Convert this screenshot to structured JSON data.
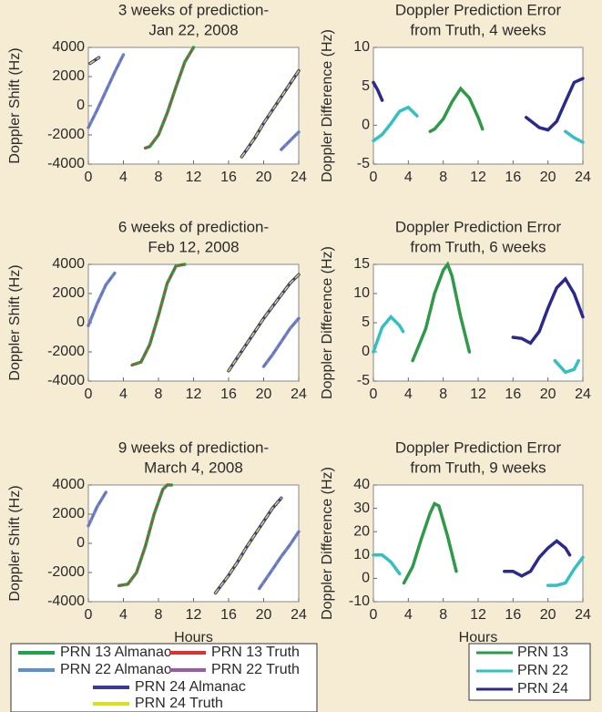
{
  "chart_data": [
    {
      "type": "line",
      "title": [
        "3 weeks of prediction-",
        "Jan 22, 2008"
      ],
      "y_label": "Doppler Shift (Hz)",
      "xlim": [
        0,
        24
      ],
      "xticks": [
        0,
        4,
        8,
        12,
        16,
        20,
        24
      ],
      "ylim": [
        -4000,
        4000
      ],
      "yticks": [
        -4000,
        -2000,
        0,
        2000,
        4000
      ],
      "series": [
        {
          "name": "PRN 13 Almanac",
          "color": "#1fa34a",
          "x": [
            6.5,
            7,
            8,
            9,
            10,
            11,
            12
          ],
          "values": [
            -2900,
            -2800,
            -2000,
            -500,
            1300,
            3000,
            4000
          ]
        },
        {
          "name": "PRN 13 Truth",
          "color": "#e03030",
          "x": [
            6.5,
            7,
            8,
            9,
            10,
            11,
            12
          ],
          "values": [
            -2900,
            -2800,
            -2000,
            -500,
            1300,
            3000,
            4000
          ]
        },
        {
          "name": "PRN 22 Almanac",
          "color": "#5b8fd0",
          "x": [
            0,
            1,
            2,
            3,
            4,
            null,
            22,
            23,
            24
          ],
          "values": [
            -1500,
            -300,
            1000,
            2300,
            3500,
            null,
            -3000,
            -2400,
            -1800
          ]
        },
        {
          "name": "PRN 22 Truth",
          "color": "#9a5aa8",
          "x": [
            0,
            1,
            2,
            3,
            4,
            null,
            22,
            23,
            24
          ],
          "values": [
            -1500,
            -300,
            1000,
            2300,
            3500,
            null,
            -3000,
            -2400,
            -1800
          ]
        },
        {
          "name": "PRN 24 Almanac",
          "color": "#3a3a96",
          "x": [
            0.2,
            1.2,
            null,
            17.5,
            19,
            20,
            21,
            22,
            23,
            24
          ],
          "values": [
            2900,
            3300,
            null,
            -3500,
            -2200,
            -1200,
            -300,
            600,
            1500,
            2400
          ]
        },
        {
          "name": "PRN 24 Truth",
          "color": "#dede20",
          "x": [
            0.2,
            1.2,
            null,
            17.5,
            19,
            20,
            21,
            22,
            23,
            24
          ],
          "values": [
            2900,
            3300,
            null,
            -3500,
            -2200,
            -1200,
            -300,
            600,
            1500,
            2400
          ]
        }
      ]
    },
    {
      "type": "line",
      "title": [
        "Doppler Prediction Error",
        "from Truth, 4 weeks"
      ],
      "y_label": "Doppler Difference (Hz)",
      "xlim": [
        0,
        24
      ],
      "xticks": [
        0,
        4,
        8,
        12,
        16,
        20,
        24
      ],
      "ylim": [
        -5,
        10
      ],
      "yticks": [
        -5,
        0,
        5,
        10
      ],
      "series": [
        {
          "name": "PRN 13",
          "color": "#2e9a48",
          "x": [
            6.5,
            7,
            8,
            9,
            10,
            11,
            12,
            12.5
          ],
          "values": [
            -0.8,
            -0.5,
            0.8,
            3,
            4.7,
            3.5,
            1,
            -0.5
          ]
        },
        {
          "name": "PRN 22",
          "color": "#33c0c0",
          "x": [
            0,
            1,
            2,
            3,
            4,
            5,
            null,
            22,
            23,
            24
          ],
          "values": [
            -2,
            -1.2,
            0.2,
            1.8,
            2.3,
            1.2,
            null,
            -0.8,
            -1.6,
            -2.2
          ]
        },
        {
          "name": "PRN 24",
          "color": "#2a2a8c",
          "x": [
            0,
            0.5,
            1,
            null,
            17.5,
            19,
            20,
            21,
            22,
            23,
            24
          ],
          "values": [
            5.5,
            4.5,
            3.2,
            null,
            1,
            -0.3,
            -0.6,
            0.5,
            3,
            5.5,
            6
          ]
        }
      ]
    },
    {
      "type": "line",
      "title": [
        "6 weeks of prediction-",
        "Feb 12, 2008"
      ],
      "y_label": "Doppler Shift (Hz)",
      "xlim": [
        0,
        24
      ],
      "xticks": [
        0,
        4,
        8,
        12,
        16,
        20,
        24
      ],
      "ylim": [
        -4000,
        4000
      ],
      "yticks": [
        -4000,
        -2000,
        0,
        2000,
        4000
      ],
      "series": [
        {
          "name": "PRN 13 Almanac",
          "color": "#1fa34a",
          "x": [
            5,
            6,
            7,
            8,
            9,
            10,
            11
          ],
          "values": [
            -2900,
            -2700,
            -1500,
            500,
            2700,
            3900,
            4000
          ]
        },
        {
          "name": "PRN 13 Truth",
          "color": "#e03030",
          "x": [
            5,
            6,
            7,
            8,
            9,
            10,
            11
          ],
          "values": [
            -2900,
            -2700,
            -1500,
            500,
            2700,
            3900,
            4000
          ]
        },
        {
          "name": "PRN 22 Almanac",
          "color": "#5b8fd0",
          "x": [
            0,
            1,
            2,
            3,
            null,
            20,
            21,
            22,
            23,
            24
          ],
          "values": [
            -200,
            1300,
            2600,
            3400,
            null,
            -3000,
            -2200,
            -1300,
            -400,
            300
          ]
        },
        {
          "name": "PRN 22 Truth",
          "color": "#9a5aa8",
          "x": [
            0,
            1,
            2,
            3,
            null,
            20,
            21,
            22,
            23,
            24
          ],
          "values": [
            -200,
            1300,
            2600,
            3400,
            null,
            -3000,
            -2200,
            -1300,
            -400,
            300
          ]
        },
        {
          "name": "PRN 24 Almanac",
          "color": "#3a3a96",
          "x": [
            16,
            17,
            18,
            19,
            20,
            21,
            22,
            23,
            24
          ],
          "values": [
            -3300,
            -2400,
            -1500,
            -600,
            300,
            1100,
            1900,
            2700,
            3300
          ]
        },
        {
          "name": "PRN 24 Truth",
          "color": "#dede20",
          "x": [
            16,
            17,
            18,
            19,
            20,
            21,
            22,
            23,
            24
          ],
          "values": [
            -3300,
            -2400,
            -1500,
            -600,
            300,
            1100,
            1900,
            2700,
            3300
          ]
        }
      ]
    },
    {
      "type": "line",
      "title": [
        "Doppler Prediction Error",
        "from Truth, 6 weeks"
      ],
      "y_label": "Doppler Difference (Hz)",
      "xlim": [
        0,
        24
      ],
      "xticks": [
        0,
        4,
        8,
        12,
        16,
        20,
        24
      ],
      "ylim": [
        -5,
        15
      ],
      "yticks": [
        -5,
        0,
        5,
        10,
        15
      ],
      "series": [
        {
          "name": "PRN 13",
          "color": "#2e9a48",
          "x": [
            4.5,
            6,
            7,
            8,
            8.5,
            9,
            10,
            11
          ],
          "values": [
            -1.5,
            4,
            10,
            14,
            15,
            13,
            6,
            0
          ]
        },
        {
          "name": "PRN 22",
          "color": "#33c0c0",
          "x": [
            0,
            1,
            2,
            3,
            3.4,
            null,
            20.8,
            22,
            23,
            23.5
          ],
          "values": [
            0,
            4.2,
            6,
            4.5,
            3.5,
            null,
            -1.5,
            -3.5,
            -3,
            -1.5
          ]
        },
        {
          "name": "PRN 24",
          "color": "#2a2a8c",
          "x": [
            16,
            17,
            18,
            19,
            20,
            21,
            22,
            23,
            24
          ],
          "values": [
            2.5,
            2.3,
            1.5,
            3.5,
            7.5,
            11,
            12.5,
            10,
            6
          ]
        }
      ]
    },
    {
      "type": "line",
      "title": [
        "9 weeks of prediction-",
        "March 4, 2008"
      ],
      "y_label": "Doppler Shift (Hz)",
      "x_label": "Hours",
      "xlim": [
        0,
        24
      ],
      "xticks": [
        0,
        4,
        8,
        12,
        16,
        20,
        24
      ],
      "ylim": [
        -4000,
        4000
      ],
      "yticks": [
        -4000,
        -2000,
        0,
        2000,
        4000
      ],
      "series": [
        {
          "name": "PRN 13 Almanac",
          "color": "#1fa34a",
          "x": [
            3.5,
            4.5,
            5.5,
            6.5,
            7.5,
            8.5,
            9,
            9.5
          ],
          "values": [
            -2900,
            -2800,
            -2000,
            -200,
            2000,
            3700,
            4000,
            4000
          ]
        },
        {
          "name": "PRN 13 Truth",
          "color": "#e03030",
          "x": [
            3.5,
            4.5,
            5.5,
            6.5,
            7.5,
            8.5,
            9,
            9.5
          ],
          "values": [
            -2900,
            -2800,
            -2000,
            -200,
            2000,
            3700,
            4000,
            4000
          ]
        },
        {
          "name": "PRN 22 Almanac",
          "color": "#5b8fd0",
          "x": [
            0,
            1,
            2,
            null,
            19.5,
            21,
            22,
            23,
            24
          ],
          "values": [
            1200,
            2500,
            3500,
            null,
            -3100,
            -1800,
            -900,
            -100,
            800
          ]
        },
        {
          "name": "PRN 22 Truth",
          "color": "#9a5aa8",
          "x": [
            0,
            1,
            2,
            null,
            19.5,
            21,
            22,
            23,
            24
          ],
          "values": [
            1200,
            2500,
            3500,
            null,
            -3100,
            -1800,
            -900,
            -100,
            800
          ]
        },
        {
          "name": "PRN 24 Almanac",
          "color": "#3a3a96",
          "x": [
            14.5,
            16,
            17,
            18,
            19,
            20,
            21,
            22
          ],
          "values": [
            -3400,
            -2200,
            -1300,
            -300,
            600,
            1500,
            2400,
            3100
          ]
        },
        {
          "name": "PRN 24 Truth",
          "color": "#dede20",
          "x": [
            14.5,
            16,
            17,
            18,
            19,
            20,
            21,
            22
          ],
          "values": [
            -3400,
            -2200,
            -1300,
            -300,
            600,
            1500,
            2400,
            3100
          ]
        }
      ]
    },
    {
      "type": "line",
      "title": [
        "Doppler Prediction Error",
        "from Truth, 9 weeks"
      ],
      "y_label": "Doppler Difference (Hz)",
      "x_label": "Hours",
      "xlim": [
        0,
        24
      ],
      "xticks": [
        0,
        4,
        8,
        12,
        16,
        20,
        24
      ],
      "ylim": [
        -10,
        40
      ],
      "yticks": [
        -10,
        0,
        10,
        20,
        30,
        40
      ],
      "series": [
        {
          "name": "PRN 13",
          "color": "#2e9a48",
          "x": [
            3.5,
            4.5,
            5.5,
            6.5,
            7,
            7.5,
            8.5,
            9.5
          ],
          "values": [
            -2,
            5,
            17,
            28,
            32,
            31,
            18,
            3
          ]
        },
        {
          "name": "PRN 22",
          "color": "#33c0c0",
          "x": [
            0,
            1,
            2,
            3,
            null,
            20,
            21,
            22,
            23,
            24
          ],
          "values": [
            10,
            10,
            7,
            2,
            null,
            -3,
            -3,
            -2,
            4,
            9
          ]
        },
        {
          "name": "PRN 24",
          "color": "#2a2a8c",
          "x": [
            15,
            16,
            17,
            18,
            19,
            20,
            21,
            22,
            22.5
          ],
          "values": [
            3,
            3,
            1,
            3,
            9,
            13,
            16,
            13,
            10
          ]
        }
      ]
    }
  ]
}
